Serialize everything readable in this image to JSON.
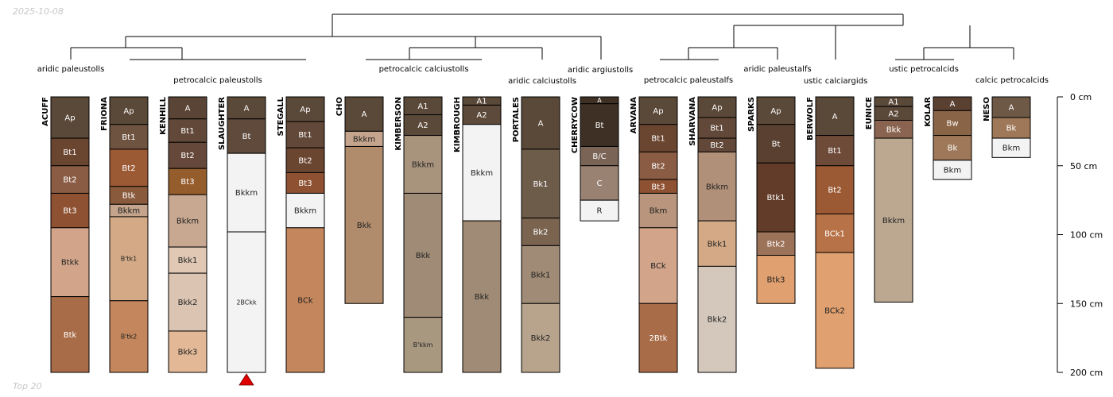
{
  "date_stamp": "2025-10-08",
  "footer_note": "Top 20",
  "depth_axis": {
    "max_cm": 200,
    "ticks": [
      {
        "value": 0,
        "label": "0 cm"
      },
      {
        "value": 50,
        "label": "50 cm"
      },
      {
        "value": 100,
        "label": "100 cm"
      },
      {
        "value": 150,
        "label": "150 cm"
      },
      {
        "value": 200,
        "label": "200 cm"
      }
    ]
  },
  "group_labels": [
    "aridic paleustolls",
    "petrocalcic paleustolls",
    "petrocalcic calciustolls",
    "aridic calciustolls",
    "aridic argiustolls",
    "petrocalcic paleustalfs",
    "aridic paleustalfs",
    "ustic calciargids",
    "ustic petrocalcids",
    "calcic petrocalcids"
  ],
  "profiles": [
    {
      "name": "ACUFF",
      "horizons": [
        {
          "name": "Ap",
          "top": 0,
          "bottom": 30,
          "color": "#5a4838"
        },
        {
          "name": "Bt1",
          "top": 30,
          "bottom": 50,
          "color": "#6a4530"
        },
        {
          "name": "Bt2",
          "top": 50,
          "bottom": 70,
          "color": "#8a5c44"
        },
        {
          "name": "Bt3",
          "top": 70,
          "bottom": 95,
          "color": "#8e5232"
        },
        {
          "name": "Btkk",
          "top": 95,
          "bottom": 145,
          "color": "#d2a58a"
        },
        {
          "name": "Btk",
          "top": 145,
          "bottom": 200,
          "color": "#a86c48"
        }
      ]
    },
    {
      "name": "FRIONA",
      "horizons": [
        {
          "name": "Ap",
          "top": 0,
          "bottom": 20,
          "color": "#5a4838"
        },
        {
          "name": "Bt1",
          "top": 20,
          "bottom": 38,
          "color": "#6e5340"
        },
        {
          "name": "Bt2",
          "top": 38,
          "bottom": 65,
          "color": "#9c5a34"
        },
        {
          "name": "Btk",
          "top": 65,
          "bottom": 78,
          "color": "#8a5a3c"
        },
        {
          "name": "Bkkm",
          "top": 78,
          "bottom": 87,
          "color": "#c4a48c"
        },
        {
          "name": "B'tk1",
          "top": 87,
          "bottom": 148,
          "color": "#d4aa86"
        },
        {
          "name": "B'tk2",
          "top": 148,
          "bottom": 200,
          "color": "#c4865c"
        }
      ]
    },
    {
      "name": "KENHILL",
      "horizons": [
        {
          "name": "A",
          "top": 0,
          "bottom": 16,
          "color": "#5a4436"
        },
        {
          "name": "Bt1",
          "top": 16,
          "bottom": 33,
          "color": "#624838"
        },
        {
          "name": "Bt2",
          "top": 33,
          "bottom": 52,
          "color": "#66483a"
        },
        {
          "name": "Bt3",
          "top": 52,
          "bottom": 71,
          "color": "#955c2c"
        },
        {
          "name": "Bkkm",
          "top": 71,
          "bottom": 109,
          "color": "#c8a890"
        },
        {
          "name": "Bkk1",
          "top": 109,
          "bottom": 128,
          "color": "#e0c8b4"
        },
        {
          "name": "Bkk2",
          "top": 128,
          "bottom": 170,
          "color": "#dcc4b2"
        },
        {
          "name": "Bkk3",
          "top": 170,
          "bottom": 200,
          "color": "#e2b896"
        }
      ]
    },
    {
      "name": "SLAUGHTER",
      "horizons": [
        {
          "name": "A",
          "top": 0,
          "bottom": 16,
          "color": "#5a4838"
        },
        {
          "name": "Bt",
          "top": 16,
          "bottom": 41,
          "color": "#5f4a3c"
        },
        {
          "name": "Bkkm",
          "top": 41,
          "bottom": 98,
          "color": "#f3f3f3"
        },
        {
          "name": "2BCkk",
          "top": 98,
          "bottom": 200,
          "color": "#f3f3f3"
        }
      ],
      "truncated": true
    },
    {
      "name": "STEGALL",
      "horizons": [
        {
          "name": "Ap",
          "top": 0,
          "bottom": 18,
          "color": "#5a4838"
        },
        {
          "name": "Bt1",
          "top": 18,
          "bottom": 37,
          "color": "#624838"
        },
        {
          "name": "Bt2",
          "top": 37,
          "bottom": 55,
          "color": "#6a4530"
        },
        {
          "name": "Bt3",
          "top": 55,
          "bottom": 70,
          "color": "#8e5232"
        },
        {
          "name": "Bkkm",
          "top": 70,
          "bottom": 95,
          "color": "#f3f3f3"
        },
        {
          "name": "BCk",
          "top": 95,
          "bottom": 200,
          "color": "#c4865c"
        }
      ]
    },
    {
      "name": "CHO",
      "horizons": [
        {
          "name": "A",
          "top": 0,
          "bottom": 25,
          "color": "#5a4838"
        },
        {
          "name": "Bkkm",
          "top": 25,
          "bottom": 36,
          "color": "#c4a48c"
        },
        {
          "name": "Bkk",
          "top": 36,
          "bottom": 150,
          "color": "#b08c6c"
        }
      ]
    },
    {
      "name": "KIMBERSON",
      "horizons": [
        {
          "name": "A1",
          "top": 0,
          "bottom": 13,
          "color": "#5a4838"
        },
        {
          "name": "A2",
          "top": 13,
          "bottom": 28,
          "color": "#5a4838"
        },
        {
          "name": "Bkkm",
          "top": 28,
          "bottom": 70,
          "color": "#a8937c"
        },
        {
          "name": "Bkk",
          "top": 70,
          "bottom": 160,
          "color": "#a08c76"
        },
        {
          "name": "B'kkm",
          "top": 160,
          "bottom": 200,
          "color": "#a89880"
        }
      ]
    },
    {
      "name": "KIMBROUGH",
      "horizons": [
        {
          "name": "A1",
          "top": 0,
          "bottom": 6,
          "color": "#5a4838"
        },
        {
          "name": "A2",
          "top": 6,
          "bottom": 20,
          "color": "#5e4a3a"
        },
        {
          "name": "Bkkm",
          "top": 20,
          "bottom": 90,
          "color": "#f3f3f3"
        },
        {
          "name": "Bkk",
          "top": 90,
          "bottom": 200,
          "color": "#a08c76"
        }
      ]
    },
    {
      "name": "PORTALES",
      "horizons": [
        {
          "name": "A",
          "top": 0,
          "bottom": 38,
          "color": "#5a4838"
        },
        {
          "name": "Bk1",
          "top": 38,
          "bottom": 88,
          "color": "#6e5c4a"
        },
        {
          "name": "Bk2",
          "top": 88,
          "bottom": 108,
          "color": "#7a6450"
        },
        {
          "name": "Bkk1",
          "top": 108,
          "bottom": 150,
          "color": "#a08c76"
        },
        {
          "name": "Bkk2",
          "top": 150,
          "bottom": 200,
          "color": "#b8a48c"
        }
      ]
    },
    {
      "name": "CHERRYCOW",
      "horizons": [
        {
          "name": "A",
          "top": 0,
          "bottom": 5,
          "color": "#3e3024"
        },
        {
          "name": "Bt",
          "top": 5,
          "bottom": 36,
          "color": "#3e3024"
        },
        {
          "name": "B/C",
          "top": 36,
          "bottom": 50,
          "color": "#7a6456"
        },
        {
          "name": "C",
          "top": 50,
          "bottom": 75,
          "color": "#9a8272"
        },
        {
          "name": "R",
          "top": 75,
          "bottom": 90,
          "color": "#f3f3f3"
        }
      ]
    },
    {
      "name": "ARVANA",
      "horizons": [
        {
          "name": "Ap",
          "top": 0,
          "bottom": 20,
          "color": "#5a4838"
        },
        {
          "name": "Bt1",
          "top": 20,
          "bottom": 40,
          "color": "#6a4530"
        },
        {
          "name": "Bt2",
          "top": 40,
          "bottom": 60,
          "color": "#8a5c44"
        },
        {
          "name": "Bt3",
          "top": 60,
          "bottom": 70,
          "color": "#8e5232"
        },
        {
          "name": "Bkm",
          "top": 70,
          "bottom": 95,
          "color": "#b8957c"
        },
        {
          "name": "BCk",
          "top": 95,
          "bottom": 150,
          "color": "#d2a58a"
        },
        {
          "name": "2Btk",
          "top": 150,
          "bottom": 200,
          "color": "#a86c48"
        }
      ]
    },
    {
      "name": "SHARVANA",
      "horizons": [
        {
          "name": "Ap",
          "top": 0,
          "bottom": 15,
          "color": "#5a4838"
        },
        {
          "name": "Bt1",
          "top": 15,
          "bottom": 30,
          "color": "#624838"
        },
        {
          "name": "Bt2",
          "top": 30,
          "bottom": 40,
          "color": "#624838"
        },
        {
          "name": "Bkkm",
          "top": 40,
          "bottom": 90,
          "color": "#b09078"
        },
        {
          "name": "Bkk1",
          "top": 90,
          "bottom": 123,
          "color": "#d4aa86"
        },
        {
          "name": "Bkk2",
          "top": 123,
          "bottom": 200,
          "color": "#d4c8bc"
        }
      ]
    },
    {
      "name": "SPARKS",
      "horizons": [
        {
          "name": "Ap",
          "top": 0,
          "bottom": 20,
          "color": "#5a4838"
        },
        {
          "name": "Bt",
          "top": 20,
          "bottom": 48,
          "color": "#5a4030"
        },
        {
          "name": "Btk1",
          "top": 48,
          "bottom": 98,
          "color": "#623c28"
        },
        {
          "name": "Btk2",
          "top": 98,
          "bottom": 115,
          "color": "#9c7258"
        },
        {
          "name": "Btk3",
          "top": 115,
          "bottom": 150,
          "color": "#e0a070"
        }
      ]
    },
    {
      "name": "BERWOLF",
      "horizons": [
        {
          "name": "A",
          "top": 0,
          "bottom": 28,
          "color": "#5a4838"
        },
        {
          "name": "Bt1",
          "top": 28,
          "bottom": 50,
          "color": "#6e4a38"
        },
        {
          "name": "Bt2",
          "top": 50,
          "bottom": 85,
          "color": "#9c5a34"
        },
        {
          "name": "BCk1",
          "top": 85,
          "bottom": 113,
          "color": "#b87248"
        },
        {
          "name": "BCk2",
          "top": 113,
          "bottom": 197,
          "color": "#e0a070"
        }
      ]
    },
    {
      "name": "EUNICE",
      "horizons": [
        {
          "name": "A1",
          "top": 0,
          "bottom": 7,
          "color": "#5a4838"
        },
        {
          "name": "A2",
          "top": 7,
          "bottom": 17,
          "color": "#5a4838"
        },
        {
          "name": "Bkk",
          "top": 17,
          "bottom": 30,
          "color": "#8a6450"
        },
        {
          "name": "Bkkm",
          "top": 30,
          "bottom": 149,
          "color": "#bca890"
        }
      ]
    },
    {
      "name": "KOLAR",
      "horizons": [
        {
          "name": "A",
          "top": 0,
          "bottom": 10,
          "color": "#5a4030"
        },
        {
          "name": "Bw",
          "top": 10,
          "bottom": 28,
          "color": "#8a6446"
        },
        {
          "name": "Bk",
          "top": 28,
          "bottom": 46,
          "color": "#9e7858"
        },
        {
          "name": "Bkm",
          "top": 46,
          "bottom": 60,
          "color": "#f3f3f3"
        }
      ]
    },
    {
      "name": "NESO",
      "horizons": [
        {
          "name": "A",
          "top": 0,
          "bottom": 15,
          "color": "#6e5846"
        },
        {
          "name": "Bk",
          "top": 15,
          "bottom": 30,
          "color": "#9e7858"
        },
        {
          "name": "Bkm",
          "top": 30,
          "bottom": 44,
          "color": "#f3f3f3"
        }
      ]
    }
  ]
}
